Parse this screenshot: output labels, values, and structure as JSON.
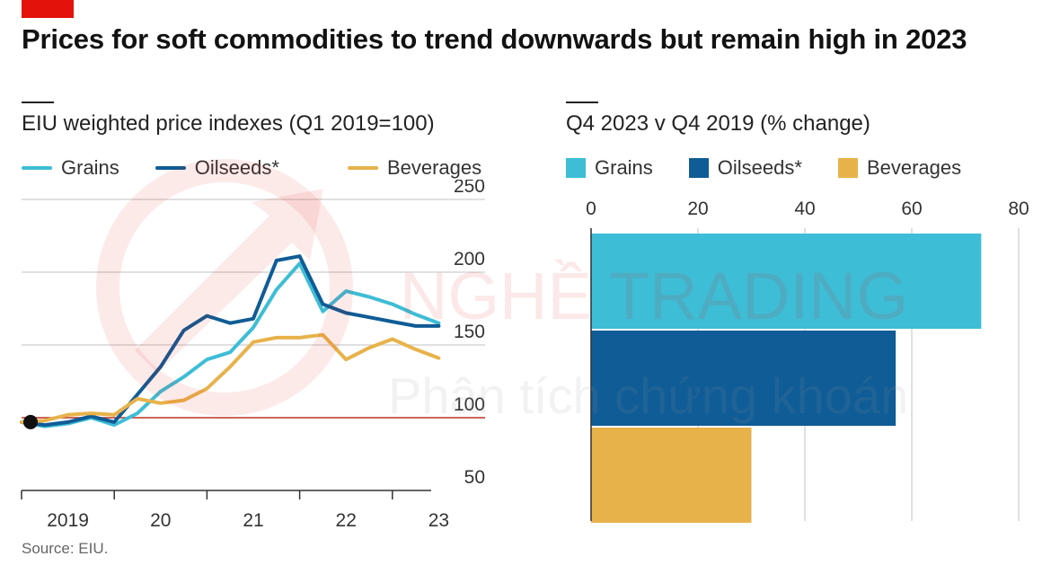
{
  "title": "Prices for soft commodities to trend downwards but remain high in 2023",
  "source": "Source: EIU.",
  "colors": {
    "grains": "#3ebdd6",
    "oilseeds": "#0f5c96",
    "beverages": "#e8b24b",
    "baseline": "#c0392b",
    "accent": "#e3120b"
  },
  "watermark": {
    "brand": "NGHỀ TRADING",
    "tagline": "Phân tích chứng khoán"
  },
  "chart_data": [
    {
      "type": "line",
      "title": "EIU weighted price indexes (Q1 2019=100)",
      "x": [
        2019.0,
        2019.25,
        2019.5,
        2019.75,
        2020.0,
        2020.25,
        2020.5,
        2020.75,
        2021.0,
        2021.25,
        2021.5,
        2021.75,
        2022.0,
        2022.25,
        2022.5,
        2022.75,
        2023.0,
        2023.25,
        2023.5,
        2023.75
      ],
      "x_ticks": [
        {
          "value": 2019.5,
          "label": "2019"
        },
        {
          "value": 2020.5,
          "label": "20"
        },
        {
          "value": 2021.5,
          "label": "21"
        },
        {
          "value": 2022.5,
          "label": "22"
        },
        {
          "value": 2023.5,
          "label": "23"
        }
      ],
      "xlim": [
        2019.0,
        2024.0
      ],
      "ylim": [
        50,
        250
      ],
      "y_ticks": [
        50,
        100,
        150,
        200,
        250
      ],
      "baseline": 100,
      "grid": true,
      "legend": "top",
      "series": [
        {
          "name": "Grains",
          "key": "grains",
          "values": [
            97,
            94,
            96,
            100,
            95,
            103,
            118,
            128,
            140,
            145,
            162,
            188,
            206,
            173,
            187,
            183,
            178,
            171,
            165,
            null
          ]
        },
        {
          "name": "Oilseeds*",
          "key": "oilseeds",
          "values": [
            97,
            95,
            97,
            101,
            97,
            116,
            135,
            160,
            170,
            165,
            168,
            208,
            211,
            178,
            172,
            169,
            166,
            163,
            163,
            null
          ]
        },
        {
          "name": "Beverages",
          "key": "beverages",
          "values": [
            97,
            98,
            102,
            103,
            102,
            113,
            110,
            112,
            120,
            135,
            152,
            155,
            155,
            157,
            140,
            148,
            154,
            147,
            141,
            null
          ]
        }
      ],
      "start_marker": {
        "x": 2019.0,
        "y": 97
      }
    },
    {
      "type": "bar",
      "orientation": "horizontal",
      "title": "Q4 2023 v Q4 2019 (% change)",
      "categories": [
        "Grains",
        "Oilseeds*",
        "Beverages"
      ],
      "values": [
        73,
        57,
        30
      ],
      "xlim": [
        0,
        80
      ],
      "x_ticks": [
        0,
        20,
        40,
        60,
        80
      ],
      "grid": true,
      "legend": "top"
    }
  ]
}
